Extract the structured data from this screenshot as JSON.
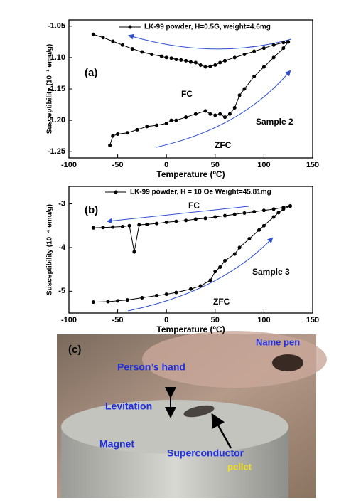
{
  "chart_data": [
    {
      "type": "line",
      "panel": "(a)",
      "xlabel": "Temperature (ºC)",
      "ylabel": "Susceptibility (10⁻¹ emu/g)",
      "legend": "LK-99 powder, H=0.5G, weight=4.6mg",
      "xlim": [
        -100,
        150
      ],
      "xticks": [
        -100,
        -50,
        0,
        50,
        100,
        150
      ],
      "ylim": [
        -1.26,
        -1.04
      ],
      "yticks": [
        -1.05,
        {
          "value": -1.1,
          "label": "-1.10"
        },
        -1.15,
        {
          "value": -1.2,
          "label": "-1.20"
        },
        -1.25
      ],
      "annotations": [
        "FC",
        "Sample 2",
        "ZFC"
      ],
      "series": [
        {
          "color": "#000000",
          "x": [
            -75,
            -65,
            -55,
            -45,
            -35,
            -25,
            -15,
            -5,
            0,
            5,
            10,
            15,
            20,
            25,
            30,
            35,
            40,
            45,
            50,
            55,
            60,
            70,
            80,
            90,
            100,
            110,
            120,
            125
          ],
          "values": [
            -1.063,
            -1.068,
            -1.074,
            -1.08,
            -1.086,
            -1.091,
            -1.095,
            -1.098,
            -1.1,
            -1.101,
            -1.103,
            -1.104,
            -1.105,
            -1.107,
            -1.108,
            -1.112,
            -1.115,
            -1.114,
            -1.112,
            -1.108,
            -1.105,
            -1.1,
            -1.095,
            -1.09,
            -1.085,
            -1.08,
            -1.076,
            -1.075
          ]
        },
        {
          "color": "#000000",
          "x": [
            -58,
            -55,
            -50,
            -40,
            -30,
            -20,
            -10,
            0,
            5,
            10,
            20,
            30,
            40,
            45,
            50,
            55,
            60,
            65,
            70,
            75,
            80,
            90,
            100,
            110,
            120,
            125
          ],
          "values": [
            -1.24,
            -1.225,
            -1.222,
            -1.22,
            -1.215,
            -1.21,
            -1.208,
            -1.205,
            -1.2,
            -1.2,
            -1.195,
            -1.19,
            -1.185,
            -1.19,
            -1.192,
            -1.19,
            -1.195,
            -1.19,
            -1.18,
            -1.16,
            -1.15,
            -1.13,
            -1.115,
            -1.1,
            -1.085,
            -1.075
          ]
        }
      ]
    },
    {
      "type": "line",
      "panel": "(b)",
      "xlabel": "Temperature (ºC)",
      "ylabel": "Susceptibility (10⁻⁴ emu/g)",
      "legend": "LK-99 powder, H = 10 Oe  Weight=45.81mg",
      "xlim": [
        -100,
        150
      ],
      "xticks": [
        -100,
        -50,
        0,
        50,
        100,
        150
      ],
      "ylim": [
        -5.5,
        -2.6
      ],
      "yticks": [
        -3,
        -4,
        -5
      ],
      "annotations": [
        "FC",
        "Sample 3",
        "ZFC"
      ],
      "series": [
        {
          "color": "#000000",
          "x": [
            -75,
            -65,
            -55,
            -45,
            -38,
            -33,
            -28,
            -20,
            -10,
            0,
            10,
            20,
            30,
            40,
            50,
            60,
            70,
            80,
            90,
            100,
            110,
            120,
            127
          ],
          "values": [
            -3.55,
            -3.54,
            -3.53,
            -3.52,
            -3.5,
            -4.1,
            -3.48,
            -3.47,
            -3.45,
            -3.42,
            -3.4,
            -3.38,
            -3.35,
            -3.33,
            -3.3,
            -3.27,
            -3.24,
            -3.21,
            -3.18,
            -3.15,
            -3.12,
            -3.08,
            -3.05
          ]
        },
        {
          "color": "#000000",
          "x": [
            -75,
            -60,
            -50,
            -40,
            -25,
            -10,
            0,
            10,
            25,
            35,
            45,
            50,
            55,
            60,
            70,
            75,
            85,
            95,
            100,
            110,
            115,
            120,
            127
          ],
          "values": [
            -5.25,
            -5.24,
            -5.22,
            -5.2,
            -5.15,
            -5.1,
            -5.07,
            -5.03,
            -4.95,
            -4.88,
            -4.75,
            -4.55,
            -4.45,
            -4.3,
            -4.15,
            -4.0,
            -3.8,
            -3.6,
            -3.5,
            -3.3,
            -3.2,
            -3.12,
            -3.05
          ]
        }
      ]
    }
  ],
  "photo": {
    "panel": "(c)",
    "labels": [
      "Name pen",
      "Person’s hand",
      "Levitation",
      "Magnet",
      "Superconductor",
      "pellet"
    ]
  }
}
